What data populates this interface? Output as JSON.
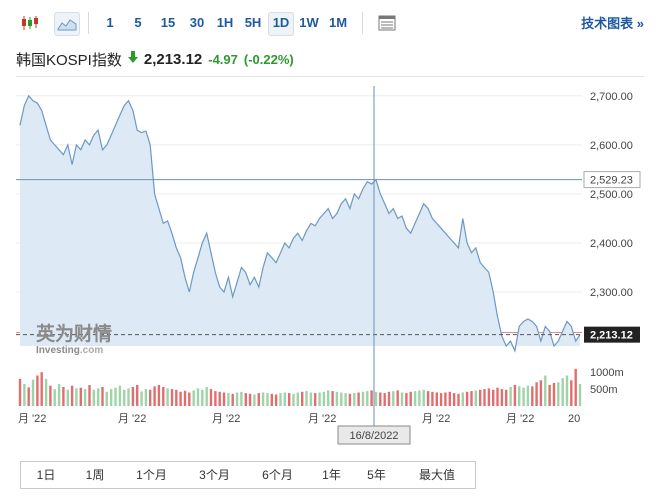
{
  "toolbar": {
    "icons": [
      "candlestick-icon",
      "area-chart-icon",
      "table-icon"
    ],
    "timeframes": [
      "1",
      "5",
      "15",
      "30",
      "1H",
      "5H",
      "1D",
      "1W",
      "1M"
    ],
    "selected_timeframe": "1D",
    "tech_chart_label": "技术图表 »"
  },
  "header": {
    "name": "韩国KOSPI指数",
    "price": "2,213.12",
    "change": "-4.97",
    "change_pct": "(-0.22%)"
  },
  "watermark": {
    "main": "英为财情",
    "sub": "Investing",
    "sub_suffix": ".com"
  },
  "crosshair": {
    "date_label": "16/8/2022",
    "value_label": "2,529.23"
  },
  "chart_data": {
    "type": "area",
    "ylim": [
      2190,
      2720
    ],
    "yticks": [
      2300,
      2400,
      2500,
      2600,
      2700
    ],
    "ytick_labels": [
      "2,300.00",
      "2,400.00",
      "2,500.00",
      "2,600.00",
      "2,700.00"
    ],
    "last_value": 2213.12,
    "last_value_label": "2,213.12",
    "xtick_labels": [
      "月 '22",
      "月 '22",
      "月 '22",
      "月 '22",
      "月 '22",
      "月 '22",
      "20"
    ],
    "values": [
      2640,
      2680,
      2700,
      2690,
      2685,
      2670,
      2640,
      2610,
      2600,
      2590,
      2580,
      2600,
      2560,
      2600,
      2590,
      2610,
      2600,
      2620,
      2630,
      2590,
      2600,
      2620,
      2640,
      2660,
      2680,
      2690,
      2670,
      2630,
      2625,
      2628,
      2600,
      2500,
      2470,
      2440,
      2445,
      2420,
      2390,
      2370,
      2330,
      2300,
      2340,
      2370,
      2400,
      2420,
      2380,
      2340,
      2310,
      2300,
      2330,
      2290,
      2320,
      2350,
      2340,
      2315,
      2330,
      2310,
      2350,
      2380,
      2370,
      2360,
      2380,
      2400,
      2390,
      2410,
      2420,
      2405,
      2425,
      2440,
      2435,
      2450,
      2460,
      2470,
      2450,
      2460,
      2480,
      2490,
      2470,
      2500,
      2490,
      2510,
      2525,
      2520,
      2529,
      2500,
      2480,
      2460,
      2470,
      2450,
      2455,
      2430,
      2420,
      2440,
      2460,
      2480,
      2470,
      2450,
      2440,
      2430,
      2420,
      2410,
      2400,
      2390,
      2450,
      2400,
      2380,
      2390,
      2360,
      2350,
      2340,
      2300,
      2250,
      2210,
      2190,
      2200,
      2180,
      2230,
      2240,
      2245,
      2240,
      2230,
      2200,
      2230,
      2220,
      2190,
      2200,
      2220,
      2240,
      2230,
      2200,
      2213
    ],
    "volume_axis_labels": [
      "1000m",
      "500m"
    ],
    "volume_ylim": [
      0,
      1300
    ],
    "volume": [
      800,
      650,
      550,
      780,
      900,
      1000,
      800,
      600,
      500,
      650,
      560,
      480,
      600,
      520,
      540,
      500,
      620,
      480,
      520,
      560,
      420,
      500,
      540,
      600,
      480,
      520,
      560,
      620,
      430,
      500,
      480,
      580,
      620,
      560,
      520,
      500,
      480,
      420,
      450,
      400,
      460,
      520,
      480,
      560,
      500,
      440,
      420,
      400,
      380,
      360,
      400,
      420,
      380,
      360,
      340,
      380,
      400,
      380,
      360,
      340,
      380,
      400,
      380,
      360,
      400,
      420,
      440,
      400,
      380,
      400,
      420,
      460,
      440,
      420,
      400,
      380,
      360,
      380,
      400,
      420,
      440,
      460,
      420,
      400,
      380,
      420,
      440,
      460,
      400,
      380,
      420,
      440,
      460,
      480,
      440,
      420,
      400,
      380,
      400,
      420,
      380,
      360,
      400,
      420,
      440,
      460,
      480,
      500,
      520,
      480,
      540,
      500,
      480,
      560,
      620,
      580,
      540,
      600,
      580,
      700,
      760,
      900,
      620,
      680,
      700,
      820,
      900,
      760,
      1100,
      650
    ],
    "volume_up": [
      0,
      1,
      0,
      1,
      0,
      0,
      1,
      0,
      1,
      1,
      0,
      1,
      0,
      1,
      0,
      1,
      0,
      1,
      1,
      0,
      1,
      1,
      1,
      1,
      1,
      1,
      0,
      0,
      1,
      1,
      0,
      0,
      0,
      0,
      1,
      0,
      0,
      0,
      0,
      0,
      1,
      1,
      1,
      1,
      0,
      0,
      0,
      0,
      1,
      0,
      1,
      1,
      0,
      0,
      1,
      0,
      1,
      1,
      0,
      0,
      1,
      1,
      0,
      1,
      1,
      0,
      1,
      1,
      0,
      1,
      1,
      1,
      0,
      1,
      1,
      1,
      0,
      1,
      0,
      1,
      1,
      0,
      1,
      0,
      0,
      0,
      1,
      0,
      1,
      0,
      0,
      1,
      1,
      1,
      0,
      0,
      0,
      0,
      0,
      0,
      0,
      0,
      1,
      0,
      0,
      1,
      0,
      0,
      0,
      0,
      0,
      0,
      0,
      1,
      0,
      1,
      1,
      1,
      0,
      0,
      0,
      1,
      0,
      0,
      1,
      1,
      1,
      0,
      0,
      1
    ],
    "colors": {
      "line": "#6d98c4",
      "fill": "#dde9f4",
      "up": "#9fd3a8",
      "down": "#e06e6e",
      "crosshair": "#6b8fb8",
      "last_line": "#c44"
    }
  },
  "periods": [
    "1日",
    "1周",
    "1个月",
    "3个月",
    "6个月",
    "1年",
    "5年",
    "最大值"
  ]
}
